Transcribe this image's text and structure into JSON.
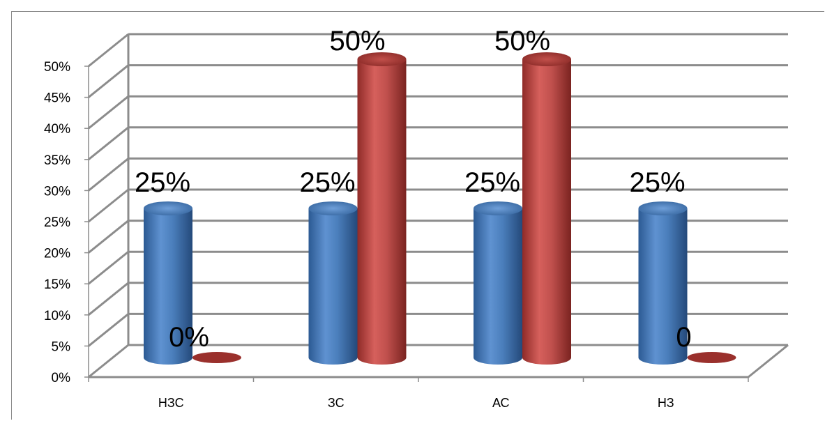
{
  "chart_data": {
    "type": "bar",
    "style": "3d-cylinder",
    "categories": [
      "НЗС",
      "ЗС",
      "АС",
      "НЗ"
    ],
    "series": [
      {
        "color": "#4a7ebb",
        "values": [
          25,
          25,
          25,
          25
        ],
        "labels": [
          "25%",
          "25%",
          "25%",
          "25%"
        ]
      },
      {
        "color": "#c0504d",
        "values": [
          0,
          50,
          50,
          0
        ],
        "labels": [
          "0%",
          "50%",
          "50%",
          "0"
        ]
      }
    ],
    "y_ticks": [
      "0%",
      "5%",
      "10%",
      "15%",
      "20%",
      "25%",
      "30%",
      "35%",
      "40%",
      "45%",
      "50%"
    ],
    "ylim": [
      0,
      50
    ],
    "grid": true,
    "legend": "none"
  }
}
